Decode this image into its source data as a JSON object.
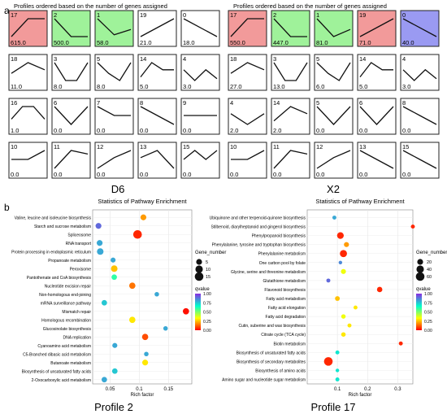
{
  "panel_a": {
    "label": "a",
    "heading_left": "Profiles ordered based on the number of genes assigned",
    "heading_right": "Profiles ordered based on the number of genes assigned",
    "left_title": "D6",
    "right_title": "X2",
    "left_grid": [
      [
        {
          "id": "17",
          "count": "615.0",
          "color": "#f29a9a",
          "shape": [
            0.0,
            1.0,
            1.0
          ]
        },
        {
          "id": "2",
          "count": "500.0",
          "color": "#9ff29a",
          "shape": [
            1.0,
            0.0,
            0.0
          ]
        },
        {
          "id": "1",
          "count": "58.0",
          "color": "#9ff29a",
          "shape": [
            1.0,
            0.1,
            0.4
          ]
        },
        {
          "id": "19",
          "count": "21.0",
          "color": "#ffffff",
          "shape": [
            0.0,
            1.0
          ]
        },
        {
          "id": "0",
          "count": "18.0",
          "color": "#ffffff",
          "shape": [
            1.0,
            0.0
          ]
        }
      ],
      [
        {
          "id": "18",
          "count": "11.0",
          "color": "#ffffff",
          "shape": [
            0.4,
            1.0,
            0.6
          ]
        },
        {
          "id": "3",
          "count": "8.0",
          "color": "#ffffff",
          "shape": [
            1.0,
            0.0,
            0.0,
            1.0
          ]
        },
        {
          "id": "5",
          "count": "8.0",
          "color": "#ffffff",
          "shape": [
            1.0,
            0.4,
            0.0,
            1.0
          ]
        },
        {
          "id": "14",
          "count": "5.0",
          "color": "#ffffff",
          "shape": [
            0.2,
            1.0,
            0.6,
            0.6
          ]
        },
        {
          "id": "4",
          "count": "3.0",
          "color": "#ffffff",
          "shape": [
            0.6,
            0.0,
            0.6,
            0.1
          ]
        }
      ],
      [
        {
          "id": "16",
          "count": "1.0",
          "color": "#ffffff",
          "shape": [
            0.3,
            1.0,
            1.0,
            0.3
          ]
        },
        {
          "id": "6",
          "count": "0.0",
          "color": "#ffffff",
          "shape": [
            1.0,
            0.0,
            1.0
          ]
        },
        {
          "id": "7",
          "count": "0.0",
          "color": "#ffffff",
          "shape": [
            1.0,
            0.5,
            0.5
          ]
        },
        {
          "id": "8",
          "count": "0.0",
          "color": "#ffffff",
          "shape": [
            1.0,
            0.5,
            0.0
          ]
        },
        {
          "id": "9",
          "count": "0.0",
          "color": "#ffffff",
          "shape": [
            0.5,
            0.5,
            0.5
          ]
        }
      ],
      [
        {
          "id": "10",
          "count": "0.0",
          "color": "#ffffff",
          "shape": [
            0.5,
            0.5,
            1.0
          ]
        },
        {
          "id": "11",
          "count": "0.0",
          "color": "#ffffff",
          "shape": [
            0.0,
            1.0,
            0.8
          ]
        },
        {
          "id": "12",
          "count": "0.0",
          "color": "#ffffff",
          "shape": [
            0.0,
            0.6,
            1.0
          ]
        },
        {
          "id": "13",
          "count": "0.0",
          "color": "#ffffff",
          "shape": [
            0.6,
            1.0,
            0.0
          ]
        },
        {
          "id": "15",
          "count": "0.0",
          "color": "#ffffff",
          "shape": [
            0.5,
            1.0,
            0.5,
            1.0
          ]
        }
      ]
    ],
    "right_grid": [
      [
        {
          "id": "17",
          "count": "550.0",
          "color": "#f29a9a",
          "shape": [
            0.0,
            1.0,
            1.0
          ]
        },
        {
          "id": "2",
          "count": "447.0",
          "color": "#9ff29a",
          "shape": [
            1.0,
            0.0,
            0.0
          ]
        },
        {
          "id": "1",
          "count": "81.0",
          "color": "#9ff29a",
          "shape": [
            1.0,
            0.0,
            0.4
          ]
        },
        {
          "id": "19",
          "count": "71.0",
          "color": "#f29a9a",
          "shape": [
            0.0,
            1.0
          ]
        },
        {
          "id": "0",
          "count": "40.0",
          "color": "#9a9af2",
          "shape": [
            1.0,
            0.0
          ]
        }
      ],
      [
        {
          "id": "18",
          "count": "27.0",
          "color": "#ffffff",
          "shape": [
            0.4,
            1.0,
            0.6
          ]
        },
        {
          "id": "3",
          "count": "13.0",
          "color": "#ffffff",
          "shape": [
            1.0,
            0.0,
            0.0,
            1.0
          ]
        },
        {
          "id": "5",
          "count": "6.0",
          "color": "#ffffff",
          "shape": [
            1.0,
            0.4,
            0.0,
            1.0
          ]
        },
        {
          "id": "14",
          "count": "5.0",
          "color": "#ffffff",
          "shape": [
            0.2,
            1.0,
            0.6,
            0.6
          ]
        },
        {
          "id": "4",
          "count": "3.0",
          "color": "#ffffff",
          "shape": [
            0.6,
            0.0,
            0.6,
            0.1
          ]
        }
      ],
      [
        {
          "id": "4",
          "count": "2.0",
          "color": "#ffffff",
          "shape": [
            0.6,
            0.0,
            0.6
          ]
        },
        {
          "id": "14",
          "count": "2.0",
          "color": "#ffffff",
          "shape": [
            0.2,
            1.0,
            0.6
          ]
        },
        {
          "id": "5",
          "count": "0.0",
          "color": "#ffffff",
          "shape": [
            1.0,
            0.0,
            1.0
          ]
        },
        {
          "id": "6",
          "count": "0.0",
          "color": "#ffffff",
          "shape": [
            1.0,
            0.0,
            1.0
          ]
        },
        {
          "id": "8",
          "count": "0.0",
          "color": "#ffffff",
          "shape": [
            1.0,
            0.5,
            0.0
          ]
        }
      ],
      [
        {
          "id": "10",
          "count": "0.0",
          "color": "#ffffff",
          "shape": [
            0.5,
            0.5,
            1.0
          ]
        },
        {
          "id": "11",
          "count": "0.0",
          "color": "#ffffff",
          "shape": [
            0.0,
            1.0,
            0.8
          ]
        },
        {
          "id": "12",
          "count": "0.0",
          "color": "#ffffff",
          "shape": [
            0.0,
            0.6,
            1.0
          ]
        },
        {
          "id": "13",
          "count": "0.0",
          "color": "#ffffff",
          "shape": [
            1.0,
            0.0
          ]
        },
        {
          "id": "15",
          "count": "0.0",
          "color": "#ffffff",
          "shape": [
            1.0,
            0.5,
            0.0
          ]
        }
      ]
    ]
  },
  "panel_b": {
    "label": "b",
    "left_caption": "Profile 2",
    "right_caption": "Profile 17"
  },
  "chart_data": [
    {
      "type": "scatter",
      "title": "Statistics of Pathway Enrichment",
      "xlabel": "Rich factor",
      "xlim": [
        0.02,
        0.19
      ],
      "xticks": [
        0.05,
        0.1,
        0.15
      ],
      "categories": [
        "Valine, leucine and isoleucine biosynthesis",
        "Starch and sucrose metabolism",
        "Spliceosome",
        "RNA transport",
        "Protein processing in endoplasmic reticulum",
        "Propanoate metabolism",
        "Peroxisome",
        "Pantothenate and CoA biosynthesis",
        "Nucleotide excision repair",
        "Non-homologous end-joining",
        "mRNA surveillance pathway",
        "Mismatch repair",
        "Homologous recombination",
        "Glucosinolate biosynthesis",
        "DNA replication",
        "Cyanoamino acid metabolism",
        "C5-Branched dibasic acid metabolism",
        "Butanoate metabolism",
        "Biosynthesis of unsaturated fatty acids",
        "2-Oxocarboxylic acid metabolism"
      ],
      "x": [
        0.107,
        0.03,
        0.097,
        0.032,
        0.033,
        0.055,
        0.057,
        0.057,
        0.088,
        0.13,
        0.04,
        0.18,
        0.088,
        0.145,
        0.11,
        0.058,
        0.112,
        0.11,
        0.058,
        0.04
      ],
      "gene_number": [
        5,
        5,
        15,
        5,
        7,
        3,
        7,
        4,
        6,
        2,
        4,
        6,
        6,
        2,
        6,
        3,
        2,
        5,
        4,
        4
      ],
      "qvalue": [
        0.2,
        0.9,
        0.05,
        0.8,
        0.8,
        0.8,
        0.25,
        0.6,
        0.15,
        0.8,
        0.75,
        0.02,
        0.3,
        0.8,
        0.1,
        0.8,
        0.8,
        0.3,
        0.75,
        0.8
      ],
      "legend_size_title": "Gene_number",
      "legend_size_values": [
        5,
        10,
        15
      ],
      "legend_color_title": "qvalue",
      "legend_color_ticks": [
        "1.00",
        "0.75",
        "0.50",
        "0.25",
        "0.00"
      ],
      "colors": [
        "#ff0000",
        "#ffff00",
        "#00ffcc",
        "#8a2be2"
      ]
    },
    {
      "type": "scatter",
      "title": "Statistics of Pathway Enrichment",
      "xlabel": "Rich factor",
      "xlim": [
        0.0,
        0.35
      ],
      "xticks": [
        0.1,
        0.2,
        0.3
      ],
      "categories": [
        "Ubiquinone and other terpenoid-quinone biosynthesis",
        "Stilbenoid, diarylheptanoid and gingerol biosynthesis",
        "Phenylpropanoid biosynthesis",
        "Phenylalanine, tyrosine and tryptophan biosynthesis",
        "Phenylalanine metabolism",
        "One carbon pool by folate",
        "Glycine, serine and threonine metabolism",
        "Glutathione metabolism",
        "Flavonoid biosynthesis",
        "Fatty acid metabolism",
        "Fatty acid elongation",
        "Fatty acid degradation",
        "Cutin, suberine and wax biosynthesis",
        "Citrate cycle (TCA cycle)",
        "Biotin metabolism",
        "Biosynthesis of unsaturated fatty acids",
        "Biosynthesis of secondary metabolites",
        "Biosynthesis of amino acids",
        "Amino sugar and nucleotide sugar metabolism"
      ],
      "x": [
        0.09,
        0.35,
        0.11,
        0.13,
        0.12,
        0.11,
        0.12,
        0.07,
        0.24,
        0.1,
        0.16,
        0.12,
        0.14,
        0.12,
        0.31,
        0.1,
        0.07,
        0.1,
        0.1
      ],
      "gene_number": [
        5,
        5,
        30,
        12,
        35,
        3,
        12,
        5,
        15,
        10,
        5,
        8,
        5,
        8,
        5,
        5,
        60,
        3,
        5
      ],
      "qvalue": [
        0.8,
        0.05,
        0.05,
        0.2,
        0.05,
        0.85,
        0.35,
        0.9,
        0.05,
        0.25,
        0.3,
        0.35,
        0.3,
        0.3,
        0.05,
        0.7,
        0.05,
        0.7,
        0.7
      ],
      "legend_size_title": "Gene_number",
      "legend_size_values": [
        20,
        40,
        60
      ],
      "legend_color_title": "qvalue",
      "legend_color_ticks": [
        "1.00",
        "0.75",
        "0.50",
        "0.25",
        "0.00"
      ],
      "colors": [
        "#ff0000",
        "#ffff00",
        "#00ffcc",
        "#8a2be2"
      ]
    }
  ]
}
